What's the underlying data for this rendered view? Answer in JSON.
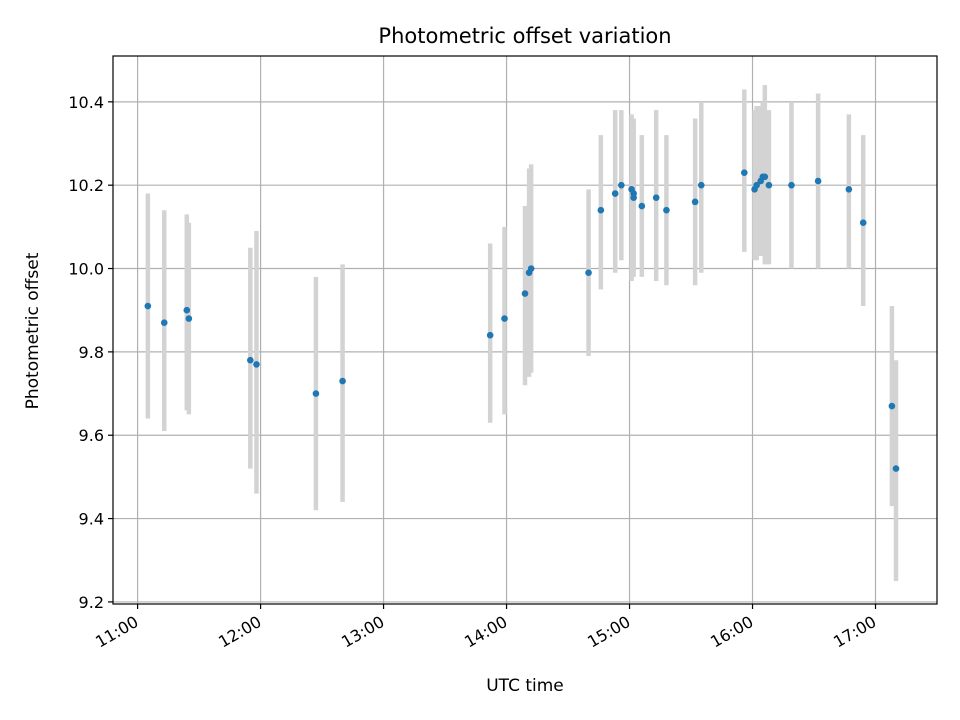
{
  "chart_data": {
    "type": "scatter",
    "title": "Photometric offset variation",
    "xlabel": "UTC time",
    "ylabel": "Photometric offset",
    "x_unit": "UTC time",
    "xlim": [
      "10:48",
      "17:30"
    ],
    "ylim": [
      9.195,
      10.51
    ],
    "x_ticks": [
      "11:00",
      "12:00",
      "13:00",
      "14:00",
      "15:00",
      "16:00",
      "17:00"
    ],
    "y_ticks": [
      "9.2",
      "9.4",
      "9.6",
      "9.8",
      "10.0",
      "10.2",
      "10.4"
    ],
    "grid": true,
    "legend": "none",
    "colors": {
      "points": "#1f77b4",
      "error_bars": "#d3d3d3",
      "grid": "#b0b0b0"
    },
    "points": [
      {
        "t": "11:05",
        "y": 9.91,
        "lo": 9.64,
        "hi": 10.18
      },
      {
        "t": "11:13",
        "y": 9.87,
        "lo": 9.61,
        "hi": 10.14
      },
      {
        "t": "11:24",
        "y": 9.9,
        "lo": 9.66,
        "hi": 10.13
      },
      {
        "t": "11:25",
        "y": 9.88,
        "lo": 9.65,
        "hi": 10.11
      },
      {
        "t": "11:55",
        "y": 9.78,
        "lo": 9.52,
        "hi": 10.05
      },
      {
        "t": "11:58",
        "y": 9.77,
        "lo": 9.46,
        "hi": 10.09
      },
      {
        "t": "12:27",
        "y": 9.7,
        "lo": 9.42,
        "hi": 9.98
      },
      {
        "t": "12:40",
        "y": 9.73,
        "lo": 9.44,
        "hi": 10.01
      },
      {
        "t": "13:52",
        "y": 9.84,
        "lo": 9.63,
        "hi": 10.06
      },
      {
        "t": "13:59",
        "y": 9.88,
        "lo": 9.65,
        "hi": 10.1
      },
      {
        "t": "14:09",
        "y": 9.94,
        "lo": 9.72,
        "hi": 10.15
      },
      {
        "t": "14:11",
        "y": 9.99,
        "lo": 9.74,
        "hi": 10.24
      },
      {
        "t": "14:12",
        "y": 10.0,
        "lo": 9.75,
        "hi": 10.25
      },
      {
        "t": "14:40",
        "y": 9.99,
        "lo": 9.79,
        "hi": 10.19
      },
      {
        "t": "14:46",
        "y": 10.14,
        "lo": 9.95,
        "hi": 10.32
      },
      {
        "t": "14:53",
        "y": 10.18,
        "lo": 9.99,
        "hi": 10.38
      },
      {
        "t": "14:56",
        "y": 10.2,
        "lo": 10.02,
        "hi": 10.38
      },
      {
        "t": "15:01",
        "y": 10.19,
        "lo": 9.97,
        "hi": 10.37
      },
      {
        "t": "15:02",
        "y": 10.18,
        "lo": 9.99,
        "hi": 10.36
      },
      {
        "t": "15:02",
        "y": 10.17,
        "lo": 9.98,
        "hi": 10.35
      },
      {
        "t": "15:06",
        "y": 10.15,
        "lo": 9.98,
        "hi": 10.32
      },
      {
        "t": "15:13",
        "y": 10.17,
        "lo": 9.97,
        "hi": 10.38
      },
      {
        "t": "15:18",
        "y": 10.14,
        "lo": 9.96,
        "hi": 10.32
      },
      {
        "t": "15:32",
        "y": 10.16,
        "lo": 9.96,
        "hi": 10.36
      },
      {
        "t": "15:35",
        "y": 10.2,
        "lo": 9.99,
        "hi": 10.4
      },
      {
        "t": "15:56",
        "y": 10.23,
        "lo": 10.04,
        "hi": 10.43
      },
      {
        "t": "16:01",
        "y": 10.19,
        "lo": 10.02,
        "hi": 10.38
      },
      {
        "t": "16:02",
        "y": 10.2,
        "lo": 10.02,
        "hi": 10.39
      },
      {
        "t": "16:04",
        "y": 10.21,
        "lo": 10.03,
        "hi": 10.39
      },
      {
        "t": "16:05",
        "y": 10.22,
        "lo": 10.03,
        "hi": 10.4
      },
      {
        "t": "16:06",
        "y": 10.22,
        "lo": 10.01,
        "hi": 10.44
      },
      {
        "t": "16:08",
        "y": 10.2,
        "lo": 10.01,
        "hi": 10.38
      },
      {
        "t": "16:19",
        "y": 10.2,
        "lo": 10.0,
        "hi": 10.4
      },
      {
        "t": "16:32",
        "y": 10.21,
        "lo": 10.0,
        "hi": 10.42
      },
      {
        "t": "16:47",
        "y": 10.19,
        "lo": 10.0,
        "hi": 10.37
      },
      {
        "t": "16:54",
        "y": 10.11,
        "lo": 9.91,
        "hi": 10.32
      },
      {
        "t": "17:08",
        "y": 9.67,
        "lo": 9.43,
        "hi": 9.91
      },
      {
        "t": "17:10",
        "y": 9.52,
        "lo": 9.25,
        "hi": 9.78
      }
    ]
  }
}
